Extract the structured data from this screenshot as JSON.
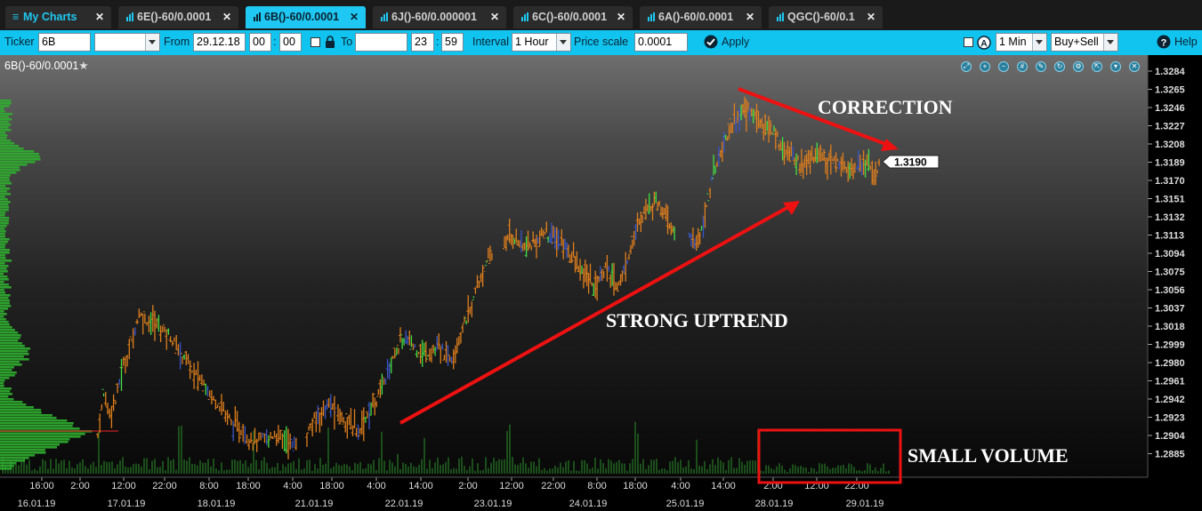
{
  "tabs": [
    {
      "label": "My Charts",
      "closable": true,
      "active": false
    },
    {
      "label": "6E()-60/0.0001",
      "closable": true,
      "active": false
    },
    {
      "label": "6B()-60/0.0001",
      "closable": true,
      "active": true
    },
    {
      "label": "6J()-60/0.000001",
      "closable": true,
      "active": false
    },
    {
      "label": "6C()-60/0.0001",
      "closable": true,
      "active": false
    },
    {
      "label": "6A()-60/0.0001",
      "closable": true,
      "active": false
    },
    {
      "label": "QGC()-60/0.1",
      "closable": true,
      "active": false
    }
  ],
  "toolbar": {
    "ticker_label": "Ticker",
    "ticker_value": "6B",
    "ticker_select_value": "",
    "from_label": "From",
    "from_date": "29.12.18",
    "from_hour": "00",
    "from_sep": ":",
    "from_min": "00",
    "to_label": "To",
    "to_date": "",
    "to_hour": "23",
    "to_sep": ":",
    "to_min": "59",
    "interval_label": "Interval",
    "interval_value": "1 Hour",
    "price_scale_label": "Price scale",
    "price_scale_value": "0.0001",
    "apply_label": "Apply",
    "timeframe_value": "1 Min",
    "side_value": "Buy+Sell",
    "help_label": "Help"
  },
  "chart_header": {
    "title": "6B()-60/0.0001",
    "icons": [
      "zoom-fit-icon",
      "zoom-in-icon",
      "zoom-out-icon",
      "grid-icon",
      "draw-icon",
      "refresh-icon",
      "settings-icon",
      "expand-icon",
      "collapse-icon",
      "close-icon"
    ]
  },
  "chart_data": {
    "type": "bar",
    "bar_style": "ohlc",
    "price_axis_labels": [
      "1.3284",
      "1.3265",
      "1.3246",
      "1.3227",
      "1.3208",
      "1.3189",
      "1.3170",
      "1.3151",
      "1.3132",
      "1.3113",
      "1.3094",
      "1.3075",
      "1.3056",
      "1.3037",
      "1.3018",
      "1.2999",
      "1.2980",
      "1.2961",
      "1.2942",
      "1.2923",
      "1.2904",
      "1.2885"
    ],
    "ylim": [
      1.2876,
      1.3294
    ],
    "last_price": "1.3190",
    "time_tick_labels": [
      "16:00",
      "2:00",
      "12:00",
      "22:00",
      "8:00",
      "18:00",
      "4:00",
      "18:00",
      "4:00",
      "14:00",
      "2:00",
      "12:00",
      "22:00",
      "8:00",
      "18:00",
      "4:00",
      "14:00",
      "2:00",
      "12:00",
      "22:00"
    ],
    "date_labels": [
      "16.01.19",
      "17.01.19",
      "18.01.19",
      "21.01.19",
      "22.01.19",
      "23.01.19",
      "24.01.19",
      "25.01.19",
      "28.01.19",
      "29.01.19"
    ],
    "price_path": [
      [
        1.2905,
        1.2945,
        1.293,
        1.294,
        1.297,
        1.2985,
        1.301,
        1.303,
        1.3025,
        1.3022,
        1.302,
        1.3015,
        1.301,
        1.3,
        1.299,
        1.2985,
        1.297,
        1.2965,
        1.296,
        1.295,
        1.294,
        1.2935,
        1.2925,
        1.2915,
        1.291,
        1.2905,
        1.29,
        1.2898,
        1.29,
        1.2902,
        1.2905,
        1.2903,
        1.29,
        1.2895,
        1.289
      ],
      [
        1.2905,
        1.2915,
        1.2925,
        1.293,
        1.2935,
        1.293,
        1.2925,
        1.292,
        1.2915,
        1.291,
        1.2915,
        1.2925,
        1.2935,
        1.2945,
        1.296,
        1.2975,
        1.299,
        1.3,
        1.3005,
        1.3,
        1.2995,
        1.299,
        1.299,
        1.2992,
        1.2995,
        1.299,
        1.2985,
        1.2995,
        1.301,
        1.3025,
        1.304,
        1.306,
        1.3075,
        1.3085,
        1.3095
      ],
      [
        1.3105,
        1.311,
        1.311,
        1.3105,
        1.31,
        1.31,
        1.3105,
        1.311,
        1.3115,
        1.3112,
        1.311,
        1.3105,
        1.31,
        1.3095,
        1.3085,
        1.3075,
        1.307,
        1.3065,
        1.306,
        1.307,
        1.308,
        1.307,
        1.306,
        1.3065,
        1.308,
        1.31,
        1.3115,
        1.313,
        1.314,
        1.3145,
        1.315,
        1.314,
        1.313,
        1.312,
        1.311
      ],
      [
        1.3115,
        1.31,
        1.3115,
        1.3135,
        1.316,
        1.3185,
        1.32,
        1.3215,
        1.3225,
        1.3235,
        1.324,
        1.3245,
        1.324,
        1.3235,
        1.323,
        1.3225,
        1.322,
        1.3215,
        1.3205,
        1.32,
        1.3195,
        1.319,
        1.3185,
        1.319,
        1.3195,
        1.32,
        1.3195,
        1.3192,
        1.319,
        1.3188,
        1.3185,
        1.3183,
        1.3185,
        1.3188,
        1.319,
        1.3182,
        1.3178,
        1.3185
      ]
    ],
    "volume_profile": "left-side green horizontal histogram",
    "volume_bars": "dark green bars along chart bottom"
  },
  "annotations": {
    "correction": "CORRECTION",
    "uptrend": "STRONG UPTREND",
    "small_volume": "SMALL VOLUME"
  },
  "colors": {
    "accent": "#10c4ef",
    "bar_up": "#e07f1c",
    "bar_down": "#3a56c6",
    "bar_highlight": "#43e043",
    "arrow": "#ee1111",
    "volume": "#1f5a1f"
  }
}
